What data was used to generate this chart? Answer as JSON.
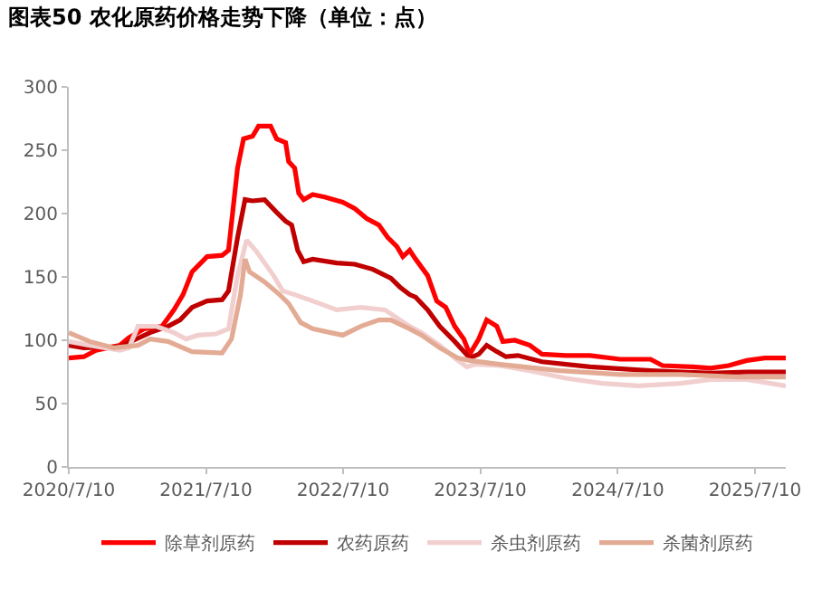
{
  "chart_data": {
    "type": "line",
    "title": "图表50 农化原药价格走势下降（单位：点）",
    "xlim": [
      "2020-07-10",
      "2025-09-30"
    ],
    "xticks": [
      {
        "value": "2020-07-10",
        "label": "2020/7/10"
      },
      {
        "value": "2021-07-10",
        "label": "2021/7/10"
      },
      {
        "value": "2022-07-10",
        "label": "2022/7/10"
      },
      {
        "value": "2023-07-10",
        "label": "2023/7/10"
      },
      {
        "value": "2024-07-10",
        "label": "2024/7/10"
      },
      {
        "value": "2025-07-10",
        "label": "2025/7/10"
      }
    ],
    "ylim": [
      0,
      300
    ],
    "yticks": [
      0,
      50,
      100,
      150,
      200,
      250,
      300
    ],
    "grid": false,
    "legend": "bottom",
    "marker": "none",
    "line_style": "solid",
    "series": [
      {
        "name": "除草剂原药",
        "color": "#ff0000",
        "x": [
          "2020-07-10",
          "2020-08-19",
          "2020-09-20",
          "2020-11-23",
          "2020-12-17",
          "2021-01-26",
          "2021-03-15",
          "2021-04-16",
          "2021-05-10",
          "2021-06-03",
          "2021-07-13",
          "2021-08-22",
          "2021-09-08",
          "2021-10-02",
          "2021-10-18",
          "2021-11-11",
          "2021-11-27",
          "2021-12-29",
          "2022-01-14",
          "2022-02-07",
          "2022-02-15",
          "2022-03-03",
          "2022-03-14",
          "2022-03-27",
          "2022-04-20",
          "2022-05-22",
          "2022-07-09",
          "2022-08-10",
          "2022-09-11",
          "2022-10-13",
          "2022-11-06",
          "2022-11-30",
          "2022-12-16",
          "2023-01-03",
          "2023-01-19",
          "2023-02-20",
          "2023-03-16",
          "2023-04-09",
          "2023-05-03",
          "2023-05-27",
          "2023-06-12",
          "2023-07-06",
          "2023-07-27",
          "2023-08-23",
          "2023-09-08",
          "2023-10-10",
          "2023-11-19",
          "2023-12-21",
          "2024-02-23",
          "2024-04-27",
          "2024-07-16",
          "2024-10-05",
          "2024-11-06",
          "2025-01-25",
          "2025-03-14",
          "2025-05-01",
          "2025-06-18",
          "2025-08-05",
          "2025-09-30"
        ],
        "values": [
          86,
          87,
          92,
          96,
          102,
          109,
          111,
          124,
          136,
          154,
          166,
          167,
          171,
          236,
          259,
          261,
          269,
          269,
          259,
          256,
          241,
          236,
          216,
          211,
          215,
          213,
          209,
          204,
          196,
          191,
          181,
          174,
          166,
          171,
          164,
          151,
          131,
          126,
          111,
          101,
          89,
          101,
          116,
          111,
          99,
          100,
          96,
          89,
          88,
          88,
          85,
          85,
          80,
          79,
          78,
          80,
          84,
          86,
          86
        ]
      },
      {
        "name": "农药原药",
        "color": "#c00000",
        "x": [
          "2020-07-10",
          "2020-08-19",
          "2020-11-23",
          "2021-02-11",
          "2021-03-31",
          "2021-05-02",
          "2021-06-03",
          "2021-07-13",
          "2021-08-22",
          "2021-09-08",
          "2021-10-02",
          "2021-10-22",
          "2021-11-11",
          "2021-12-13",
          "2022-01-14",
          "2022-02-07",
          "2022-02-23",
          "2022-03-11",
          "2022-03-27",
          "2022-04-20",
          "2022-06-23",
          "2022-08-10",
          "2022-09-27",
          "2022-11-14",
          "2022-12-08",
          "2023-01-03",
          "2023-01-19",
          "2023-02-20",
          "2023-03-24",
          "2023-05-03",
          "2023-06-12",
          "2023-07-06",
          "2023-07-27",
          "2023-08-23",
          "2023-09-16",
          "2023-10-18",
          "2023-12-21",
          "2024-04-27",
          "2024-10-05",
          "2025-03-14",
          "2025-06-18",
          "2025-09-30"
        ],
        "values": [
          96,
          94,
          95,
          106,
          111,
          116,
          126,
          131,
          132,
          139,
          181,
          211,
          210,
          211,
          201,
          194,
          191,
          171,
          162,
          164,
          161,
          160,
          156,
          149,
          142,
          136,
          134,
          124,
          111,
          99,
          86,
          89,
          96,
          91,
          87,
          88,
          83,
          79,
          76,
          74,
          75,
          75
        ]
      },
      {
        "name": "杀虫剂原药",
        "color": "#f2cfcf",
        "x": [
          "2020-07-10",
          "2020-09-04",
          "2020-11-23",
          "2020-12-17",
          "2021-01-10",
          "2021-02-27",
          "2021-04-16",
          "2021-05-18",
          "2021-06-19",
          "2021-08-06",
          "2021-09-08",
          "2021-10-02",
          "2021-10-26",
          "2021-11-19",
          "2021-12-13",
          "2022-01-06",
          "2022-01-30",
          "2022-03-03",
          "2022-04-20",
          "2022-06-23",
          "2022-08-26",
          "2022-10-29",
          "2023-01-03",
          "2023-02-04",
          "2023-03-24",
          "2023-05-03",
          "2023-06-04",
          "2023-06-28",
          "2023-08-31",
          "2023-11-19",
          "2024-02-23",
          "2024-05-29",
          "2024-09-03",
          "2024-12-24",
          "2025-03-14",
          "2025-06-18",
          "2025-09-30"
        ],
        "values": [
          99,
          96,
          92,
          94,
          111,
          111,
          106,
          101,
          104,
          105,
          109,
          151,
          179,
          171,
          161,
          151,
          139,
          136,
          131,
          124,
          126,
          124,
          111,
          106,
          96,
          86,
          79,
          81,
          80,
          76,
          70,
          66,
          64,
          66,
          69,
          69,
          64
        ]
      },
      {
        "name": "杀菌剂原药",
        "color": "#e3aa94",
        "x": [
          "2020-07-10",
          "2020-09-04",
          "2020-11-07",
          "2021-01-10",
          "2021-02-11",
          "2021-03-31",
          "2021-06-03",
          "2021-08-22",
          "2021-09-16",
          "2021-10-10",
          "2021-10-22",
          "2021-11-03",
          "2021-12-13",
          "2022-01-22",
          "2022-02-15",
          "2022-03-19",
          "2022-04-20",
          "2022-06-07",
          "2022-07-09",
          "2022-08-26",
          "2022-10-13",
          "2022-11-14",
          "2023-01-03",
          "2023-02-04",
          "2023-03-24",
          "2023-05-11",
          "2023-06-12",
          "2023-08-31",
          "2024-02-07",
          "2024-07-16",
          "2024-12-24",
          "2025-06-02",
          "2025-09-30"
        ],
        "values": [
          106,
          99,
          94,
          96,
          101,
          99,
          91,
          90,
          101,
          136,
          164,
          154,
          146,
          136,
          129,
          114,
          109,
          106,
          104,
          111,
          116,
          116,
          109,
          104,
          94,
          86,
          84,
          81,
          76,
          73,
          73,
          71,
          71
        ]
      }
    ]
  }
}
